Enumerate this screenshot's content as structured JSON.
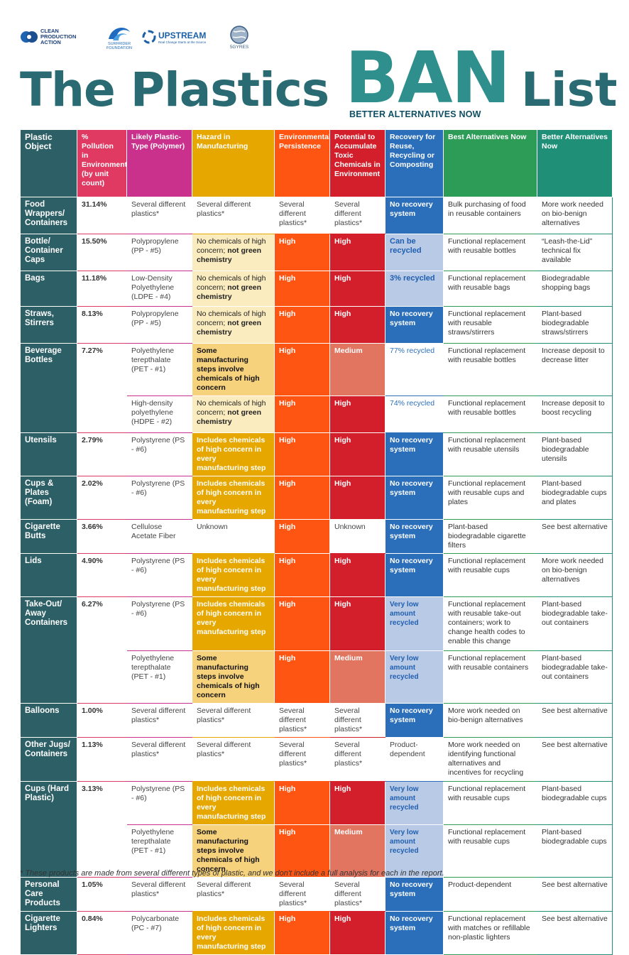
{
  "logos": {
    "cpa": "CLEAN PRODUCTION ACTION",
    "surfrider": "SURFRIDER FOUNDATION",
    "upstream": "UPSTREAM",
    "upstream_sub": "Real Change Starts at the Source",
    "gyres": "5GYRES"
  },
  "title": {
    "main": "The Plastics",
    "ban": "BAN",
    "list": "List",
    "tagline": "BETTER ALTERNATIVES NOW"
  },
  "headers": {
    "object": "Plastic Object",
    "pollution": "% Pollution in Environment (by unit count)",
    "type": "Likely Plastic-Type (Polymer)",
    "hazard": "Hazard in Manufacturing",
    "persistence": "Environmental Persistence",
    "toxic": "Potential to Accumulate Toxic Chemicals in Environment",
    "recovery": "Recovery for Reuse, Recycling or Composting",
    "best": "Best Alternatives Now",
    "better": "Better Alternatives Now"
  },
  "colors": {
    "object": "#2c5f66",
    "pollution": "#e03a62",
    "type": "#c9318c",
    "hazard": "#e6a800",
    "persistence": "#ff5512",
    "toxic": "#d21f2b",
    "recovery": "#2b6fbb",
    "best": "#2c9c57",
    "better": "#1f8f77"
  },
  "rows": [
    {
      "object": "Food Wrappers/ Containers",
      "pct": "31.14%",
      "type": "Several different plastics*",
      "hazard": "Several different plastics*",
      "persist": "Several different plastics*",
      "toxic": "Several different plastics*",
      "recovery": "No recovery system",
      "best": "Bulk purchasing of food in reusable containers",
      "better": "More work needed on bio-benign alternatives"
    },
    {
      "object": "Bottle/ Container Caps",
      "pct": "15.50%",
      "type": "Polypropylene (PP - #5)",
      "hazard_a": "No chemicals of high concern; ",
      "hazard_b": "not green chemistry",
      "persist": "High",
      "toxic": "High",
      "recovery": "Can be recycled",
      "best": "Functional replacement with reusable bottles",
      "better": "“Leash-the-Lid” technical fix available"
    },
    {
      "object": "Bags",
      "pct": "11.18%",
      "type": "Low-Density Polyethylene (LDPE - #4)",
      "hazard_a": "No chemicals of high concern; ",
      "hazard_b": "not green chemistry",
      "persist": "High",
      "toxic": "High",
      "recovery": "3% recycled",
      "best": "Functional replacement with reusable bags",
      "better": "Biodegradable shopping bags"
    },
    {
      "object": "Straws, Stirrers",
      "pct": "8.13%",
      "type": "Polypropylene (PP - #5)",
      "hazard_a": "No chemicals of high concern; ",
      "hazard_b": "not green chemistry",
      "persist": "High",
      "toxic": "High",
      "recovery": "No recovery system",
      "best": "Functional replacement with reusable straws/stirrers",
      "better": "Plant-based biodegradable straws/stirrers"
    },
    {
      "object": "Beverage Bottles",
      "pct": "7.27%",
      "type": "Polyethylene terepthalate (PET - #1)",
      "hazard": "Some manufacturing steps involve chemicals of high concern",
      "persist": "High",
      "toxic": "Medium",
      "recovery": "77% recycled",
      "best": "Functional replacement with reusable bottles",
      "better": "Increase deposit to decrease litter"
    },
    {
      "type": "High-density polyethylene (HDPE - #2)",
      "hazard_a": "No chemicals of high concern; ",
      "hazard_b": "not green chemistry",
      "persist": "High",
      "toxic": "High",
      "recovery": "74% recycled",
      "best": "Functional replacement with reusable bottles",
      "better": "Increase deposit to boost recycling"
    },
    {
      "object": "Utensils",
      "pct": "2.79%",
      "type": "Polystyrene (PS - #6)",
      "hazard": "Includes chemicals of high concern in every manufacturing step",
      "persist": "High",
      "toxic": "High",
      "recovery": "No recovery system",
      "best": "Functional replacement with reusable utensils",
      "better": "Plant-based biodegradable utensils"
    },
    {
      "object": "Cups & Plates (Foam)",
      "pct": "2.02%",
      "type": "Polystyrene (PS - #6)",
      "hazard": "Includes chemicals of high concern in every manufacturing step",
      "persist": "High",
      "toxic": "High",
      "recovery": "No recovery system",
      "best": "Functional replacement with reusable cups and plates",
      "better": "Plant-based biodegradable cups and plates"
    },
    {
      "object": "Cigarette Butts",
      "pct": "3.66%",
      "type": "Cellulose Acetate Fiber",
      "hazard": "Unknown",
      "persist": "High",
      "toxic": "Unknown",
      "recovery": "No recovery system",
      "best": "Plant-based biodegradable cigarette filters",
      "better": "See best alternative"
    },
    {
      "object": "Lids",
      "pct": "4.90%",
      "type": "Polystyrene (PS - #6)",
      "hazard": "Includes chemicals of high concern in every manufacturing step",
      "persist": "High",
      "toxic": "High",
      "recovery": "No recovery system",
      "best": "Functional replacement with reusable cups",
      "better": "More work needed on bio-benign alternatives"
    },
    {
      "object": "Take-Out/ Away Containers",
      "pct": "6.27%",
      "type": "Polystyrene (PS - #6)",
      "hazard": "Includes chemicals of high concern in every manufacturing step",
      "persist": "High",
      "toxic": "High",
      "recovery": "Very low amount recycled",
      "best": "Functional replacement with reusable take-out containers; work to change health codes to enable this change",
      "better": "Plant-based biodegradable take-out containers"
    },
    {
      "type": "Polyethylene terepthalate (PET - #1)",
      "hazard": "Some manufacturing steps involve chemicals of high concern",
      "persist": "High",
      "toxic": "Medium",
      "recovery": "Very low amount recycled",
      "best": "Functional replacement with reusable containers",
      "better": "Plant-based biodegradable take-out containers"
    },
    {
      "object": "Balloons",
      "pct": "1.00%",
      "type": "Several different plastics*",
      "hazard": "Several different plastics*",
      "persist": "Several different plastics*",
      "toxic": "Several different plastics*",
      "recovery": "No recovery system",
      "best": "More work needed on bio-benign alternatives",
      "better": "See best alternative"
    },
    {
      "object": "Other Jugs/ Containers",
      "pct": "1.13%",
      "type": "Several different plastics*",
      "hazard": "Several different plastics*",
      "persist": "Several different plastics*",
      "toxic": "Several different plastics*",
      "recovery": "Product-dependent",
      "best": "More work needed on identifying functional alternatives and incentives for recycling",
      "better": "See best alternative"
    },
    {
      "object": "Cups (Hard Plastic)",
      "pct": "3.13%",
      "type": "Polystyrene (PS - #6)",
      "hazard": "Includes chemicals of high concern in every manufacturing step",
      "persist": "High",
      "toxic": "High",
      "recovery": "Very low amount recycled",
      "best": "Functional replacement with reusable cups",
      "better": "Plant-based biodegradable cups"
    },
    {
      "type": "Polyethylene terepthalate (PET - #1)",
      "hazard": "Some manufacturing steps involve chemicals of high concern",
      "persist": "High",
      "toxic": "Medium",
      "recovery": "Very low amount recycled",
      "best": "Functional replacement with reusable cups",
      "better": "Plant-based biodegradable cups"
    },
    {
      "object": "Personal Care Products",
      "pct": "1.05%",
      "type": "Several different plastics*",
      "hazard": "Several different plastics*",
      "persist": "Several different plastics*",
      "toxic": "Several different plastics*",
      "recovery": "No recovery system",
      "best": "Product-dependent",
      "better": "See best alternative"
    },
    {
      "object": "Cigarette Lighters",
      "pct": "0.84%",
      "type": "Polycarbonate (PC - #7)",
      "hazard": "Includes chemicals of high concern in every manufacturing step",
      "persist": "High",
      "toxic": "High",
      "recovery": "No recovery system",
      "best": "Functional replacement with matches or refillable non-plastic lighters",
      "better": "See best alternative"
    }
  ],
  "footnote": "* These products are made from several different types of plastic, and we don't include a full analysis for each in the report."
}
